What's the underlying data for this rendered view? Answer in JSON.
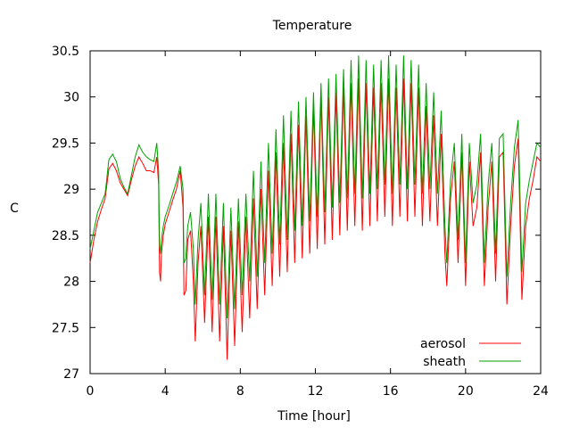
{
  "chart_data": {
    "type": "line",
    "title": "Temperature",
    "xlabel": "Time [hour]",
    "ylabel": "C",
    "xlim": [
      0,
      24
    ],
    "ylim": [
      27,
      30.5
    ],
    "x_ticks": [
      0,
      4,
      8,
      12,
      16,
      20,
      24
    ],
    "x_tick_labels": [
      "0",
      "4",
      "8",
      "12",
      "16",
      "20",
      "24"
    ],
    "y_ticks": [
      27,
      27.5,
      28,
      28.5,
      29,
      29.5,
      30,
      30.5
    ],
    "y_tick_labels": [
      "27",
      "27.5",
      "28",
      "28.5",
      "29",
      "29.5",
      "30",
      "30.5"
    ],
    "grid": false,
    "legend_position": "bottom-right",
    "series": [
      {
        "name": "aerosol",
        "color": "#ff0000",
        "points": [
          [
            0.0,
            28.2
          ],
          [
            0.2,
            28.45
          ],
          [
            0.4,
            28.65
          ],
          [
            0.6,
            28.78
          ],
          [
            0.8,
            28.9
          ],
          [
            1.0,
            29.22
          ],
          [
            1.2,
            29.28
          ],
          [
            1.4,
            29.2
          ],
          [
            1.6,
            29.07
          ],
          [
            1.8,
            29.0
          ],
          [
            2.0,
            28.93
          ],
          [
            2.2,
            29.1
          ],
          [
            2.4,
            29.25
          ],
          [
            2.6,
            29.35
          ],
          [
            2.8,
            29.28
          ],
          [
            3.0,
            29.2
          ],
          [
            3.2,
            29.2
          ],
          [
            3.4,
            29.18
          ],
          [
            3.55,
            29.35
          ],
          [
            3.65,
            29.05
          ],
          [
            3.7,
            28.1
          ],
          [
            3.75,
            28.0
          ],
          [
            3.8,
            28.3
          ],
          [
            3.9,
            28.5
          ],
          [
            4.0,
            28.62
          ],
          [
            4.2,
            28.75
          ],
          [
            4.4,
            28.88
          ],
          [
            4.6,
            29.0
          ],
          [
            4.8,
            29.2
          ],
          [
            4.95,
            28.8
          ],
          [
            5.0,
            27.85
          ],
          [
            5.1,
            27.9
          ],
          [
            5.2,
            28.45
          ],
          [
            5.35,
            28.55
          ],
          [
            5.5,
            28.0
          ],
          [
            5.6,
            27.35
          ],
          [
            5.75,
            28.2
          ],
          [
            5.9,
            28.6
          ],
          [
            6.1,
            27.55
          ],
          [
            6.3,
            28.7
          ],
          [
            6.5,
            27.45
          ],
          [
            6.7,
            28.7
          ],
          [
            6.9,
            27.35
          ],
          [
            7.1,
            28.6
          ],
          [
            7.3,
            27.15
          ],
          [
            7.5,
            28.55
          ],
          [
            7.7,
            27.3
          ],
          [
            7.9,
            28.65
          ],
          [
            8.1,
            27.45
          ],
          [
            8.3,
            28.7
          ],
          [
            8.5,
            27.6
          ],
          [
            8.7,
            28.9
          ],
          [
            8.9,
            27.7
          ],
          [
            9.1,
            29.0
          ],
          [
            9.3,
            27.85
          ],
          [
            9.5,
            29.2
          ],
          [
            9.7,
            27.95
          ],
          [
            9.9,
            29.4
          ],
          [
            10.1,
            28.05
          ],
          [
            10.3,
            29.5
          ],
          [
            10.5,
            28.1
          ],
          [
            10.7,
            29.6
          ],
          [
            10.9,
            28.2
          ],
          [
            11.1,
            29.7
          ],
          [
            11.3,
            28.25
          ],
          [
            11.5,
            29.8
          ],
          [
            11.7,
            28.3
          ],
          [
            11.9,
            29.9
          ],
          [
            12.1,
            28.35
          ],
          [
            12.3,
            30.0
          ],
          [
            12.5,
            28.4
          ],
          [
            12.7,
            30.0
          ],
          [
            12.9,
            28.45
          ],
          [
            13.1,
            30.05
          ],
          [
            13.3,
            28.5
          ],
          [
            13.5,
            30.1
          ],
          [
            13.7,
            28.55
          ],
          [
            13.9,
            30.15
          ],
          [
            14.1,
            28.6
          ],
          [
            14.3,
            30.2
          ],
          [
            14.5,
            28.55
          ],
          [
            14.7,
            30.15
          ],
          [
            14.9,
            28.6
          ],
          [
            15.1,
            30.1
          ],
          [
            15.3,
            28.65
          ],
          [
            15.5,
            30.15
          ],
          [
            15.7,
            28.7
          ],
          [
            15.9,
            30.2
          ],
          [
            16.1,
            28.6
          ],
          [
            16.3,
            30.1
          ],
          [
            16.5,
            28.7
          ],
          [
            16.7,
            30.2
          ],
          [
            16.9,
            28.65
          ],
          [
            17.1,
            30.15
          ],
          [
            17.3,
            28.7
          ],
          [
            17.5,
            30.1
          ],
          [
            17.7,
            28.6
          ],
          [
            17.9,
            29.9
          ],
          [
            18.1,
            28.65
          ],
          [
            18.3,
            29.8
          ],
          [
            18.5,
            28.6
          ],
          [
            18.7,
            29.6
          ],
          [
            18.9,
            28.3
          ],
          [
            19.0,
            27.95
          ],
          [
            19.2,
            28.9
          ],
          [
            19.4,
            29.3
          ],
          [
            19.6,
            28.2
          ],
          [
            19.8,
            29.4
          ],
          [
            20.0,
            27.95
          ],
          [
            20.2,
            29.3
          ],
          [
            20.4,
            28.6
          ],
          [
            20.6,
            28.8
          ],
          [
            20.8,
            29.4
          ],
          [
            21.0,
            27.95
          ],
          [
            21.2,
            28.8
          ],
          [
            21.4,
            29.3
          ],
          [
            21.6,
            28.0
          ],
          [
            21.8,
            29.35
          ],
          [
            22.0,
            29.4
          ],
          [
            22.2,
            27.75
          ],
          [
            22.4,
            28.6
          ],
          [
            22.6,
            29.25
          ],
          [
            22.8,
            29.55
          ],
          [
            23.0,
            27.8
          ],
          [
            23.2,
            28.6
          ],
          [
            23.4,
            28.9
          ],
          [
            23.6,
            29.1
          ],
          [
            23.8,
            29.35
          ],
          [
            24.0,
            29.3
          ]
        ]
      },
      {
        "name": "sheath",
        "color": "#00a000",
        "points": [
          [
            0.0,
            28.35
          ],
          [
            0.2,
            28.55
          ],
          [
            0.4,
            28.75
          ],
          [
            0.6,
            28.85
          ],
          [
            0.8,
            28.95
          ],
          [
            1.0,
            29.32
          ],
          [
            1.2,
            29.38
          ],
          [
            1.4,
            29.3
          ],
          [
            1.6,
            29.12
          ],
          [
            1.8,
            29.02
          ],
          [
            2.0,
            28.95
          ],
          [
            2.2,
            29.15
          ],
          [
            2.4,
            29.35
          ],
          [
            2.6,
            29.48
          ],
          [
            2.8,
            29.4
          ],
          [
            3.0,
            29.35
          ],
          [
            3.2,
            29.32
          ],
          [
            3.4,
            29.3
          ],
          [
            3.55,
            29.5
          ],
          [
            3.65,
            29.2
          ],
          [
            3.7,
            28.4
          ],
          [
            3.75,
            28.3
          ],
          [
            3.8,
            28.45
          ],
          [
            3.9,
            28.6
          ],
          [
            4.0,
            28.7
          ],
          [
            4.2,
            28.82
          ],
          [
            4.4,
            28.95
          ],
          [
            4.6,
            29.08
          ],
          [
            4.8,
            29.25
          ],
          [
            4.95,
            29.0
          ],
          [
            5.0,
            28.2
          ],
          [
            5.1,
            28.25
          ],
          [
            5.2,
            28.6
          ],
          [
            5.35,
            28.75
          ],
          [
            5.5,
            28.35
          ],
          [
            5.6,
            27.75
          ],
          [
            5.75,
            28.45
          ],
          [
            5.9,
            28.85
          ],
          [
            6.1,
            27.85
          ],
          [
            6.3,
            28.95
          ],
          [
            6.5,
            27.8
          ],
          [
            6.7,
            28.95
          ],
          [
            6.9,
            27.75
          ],
          [
            7.1,
            28.85
          ],
          [
            7.3,
            27.6
          ],
          [
            7.5,
            28.8
          ],
          [
            7.7,
            27.7
          ],
          [
            7.9,
            28.9
          ],
          [
            8.1,
            27.85
          ],
          [
            8.3,
            28.95
          ],
          [
            8.5,
            28.0
          ],
          [
            8.7,
            29.2
          ],
          [
            8.9,
            28.05
          ],
          [
            9.1,
            29.3
          ],
          [
            9.3,
            28.2
          ],
          [
            9.5,
            29.5
          ],
          [
            9.7,
            28.3
          ],
          [
            9.9,
            29.65
          ],
          [
            10.1,
            28.4
          ],
          [
            10.3,
            29.8
          ],
          [
            10.5,
            28.45
          ],
          [
            10.7,
            29.85
          ],
          [
            10.9,
            28.55
          ],
          [
            11.1,
            29.95
          ],
          [
            11.3,
            28.6
          ],
          [
            11.5,
            30.0
          ],
          [
            11.7,
            28.65
          ],
          [
            11.9,
            30.05
          ],
          [
            12.1,
            28.7
          ],
          [
            12.3,
            30.15
          ],
          [
            12.5,
            28.75
          ],
          [
            12.7,
            30.2
          ],
          [
            12.9,
            28.8
          ],
          [
            13.1,
            30.25
          ],
          [
            13.3,
            28.85
          ],
          [
            13.5,
            30.3
          ],
          [
            13.7,
            28.9
          ],
          [
            13.9,
            30.4
          ],
          [
            14.1,
            28.95
          ],
          [
            14.3,
            30.45
          ],
          [
            14.5,
            28.9
          ],
          [
            14.7,
            30.4
          ],
          [
            14.9,
            28.95
          ],
          [
            15.1,
            30.35
          ],
          [
            15.3,
            29.0
          ],
          [
            15.5,
            30.4
          ],
          [
            15.7,
            29.05
          ],
          [
            15.9,
            30.45
          ],
          [
            16.1,
            28.95
          ],
          [
            16.3,
            30.35
          ],
          [
            16.5,
            29.05
          ],
          [
            16.7,
            30.45
          ],
          [
            16.9,
            29.0
          ],
          [
            17.1,
            30.4
          ],
          [
            17.3,
            29.05
          ],
          [
            17.5,
            30.35
          ],
          [
            17.7,
            28.95
          ],
          [
            17.9,
            30.15
          ],
          [
            18.1,
            29.0
          ],
          [
            18.3,
            30.05
          ],
          [
            18.5,
            28.95
          ],
          [
            18.7,
            29.85
          ],
          [
            18.9,
            28.6
          ],
          [
            19.0,
            28.2
          ],
          [
            19.2,
            29.1
          ],
          [
            19.4,
            29.5
          ],
          [
            19.6,
            28.45
          ],
          [
            19.8,
            29.6
          ],
          [
            20.0,
            28.2
          ],
          [
            20.2,
            29.5
          ],
          [
            20.4,
            28.85
          ],
          [
            20.6,
            29.05
          ],
          [
            20.8,
            29.6
          ],
          [
            21.0,
            28.2
          ],
          [
            21.2,
            29.05
          ],
          [
            21.4,
            29.5
          ],
          [
            21.6,
            28.3
          ],
          [
            21.8,
            29.55
          ],
          [
            22.0,
            29.6
          ],
          [
            22.2,
            28.05
          ],
          [
            22.4,
            28.85
          ],
          [
            22.6,
            29.45
          ],
          [
            22.8,
            29.75
          ],
          [
            23.0,
            28.1
          ],
          [
            23.2,
            28.85
          ],
          [
            23.4,
            29.1
          ],
          [
            23.6,
            29.3
          ],
          [
            23.8,
            29.5
          ],
          [
            24.0,
            29.45
          ]
        ]
      }
    ]
  }
}
